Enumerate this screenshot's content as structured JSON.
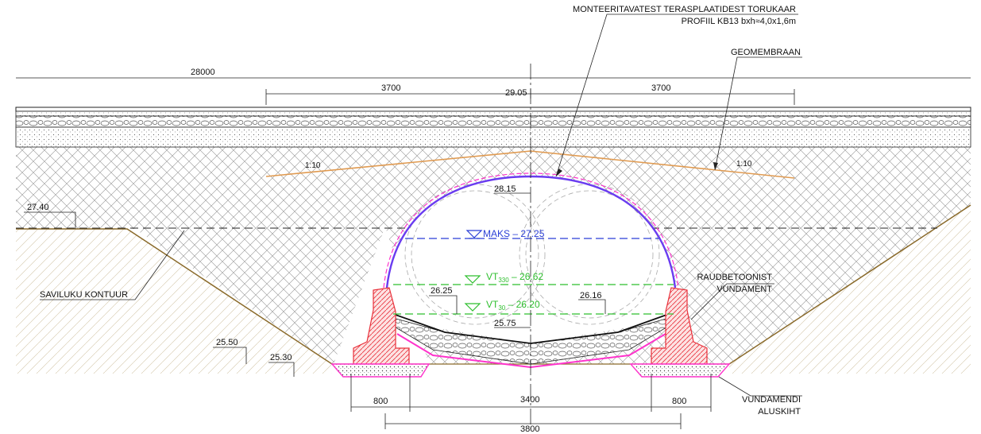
{
  "annotations": {
    "pipe_arch_title": "MONTEERITAVATEST TERASPLAATIDEST TORUKAAR",
    "pipe_arch_profile": "PROFIIL KB13  bxh≈4,0x1,6m",
    "geomembrane": "GEOMEMBRAAN",
    "clay_contour": "SAVILUKU KONTUUR",
    "rc_foundation_line1": "RAUDBETOONIST",
    "rc_foundation_line2": "VUNDAMENT",
    "foundation_base_line1": "VUNDAMENDI",
    "foundation_base_line2": "ALUSKIHT"
  },
  "dimensions": {
    "total_width": "28000",
    "left_lane": "3700",
    "right_lane": "3700",
    "left_footing": "800",
    "right_footing": "800",
    "inner_span": "3400",
    "outer_span": "3800"
  },
  "levels": {
    "top_road": "29.05",
    "arch_crown": "28.15",
    "ground_left": "27.40",
    "inner_left": "26.25",
    "inner_right": "26.16",
    "invert": "25.75",
    "left_slope": "25.50",
    "bottom_left": "25.30"
  },
  "water_levels": {
    "max_label": "MAKS",
    "max_value": "27.25",
    "vt330_base": "VT",
    "vt330_sub": "330",
    "vt330_value": "26.62",
    "vt30_base": "VT",
    "vt30_sub": "30",
    "vt30_value": "26.20"
  },
  "slopes": {
    "left": "1:10",
    "right": "1:10"
  },
  "colors": {
    "arch": "#6a3cf0",
    "arch_pink": "#ff33cc",
    "max_water": "#2a3fd6",
    "design_water": "#2fbf2f",
    "foundation_red": "#e8303a",
    "earth_line": "#8a6a2a",
    "geomembrane_orange": "#e09a50"
  }
}
